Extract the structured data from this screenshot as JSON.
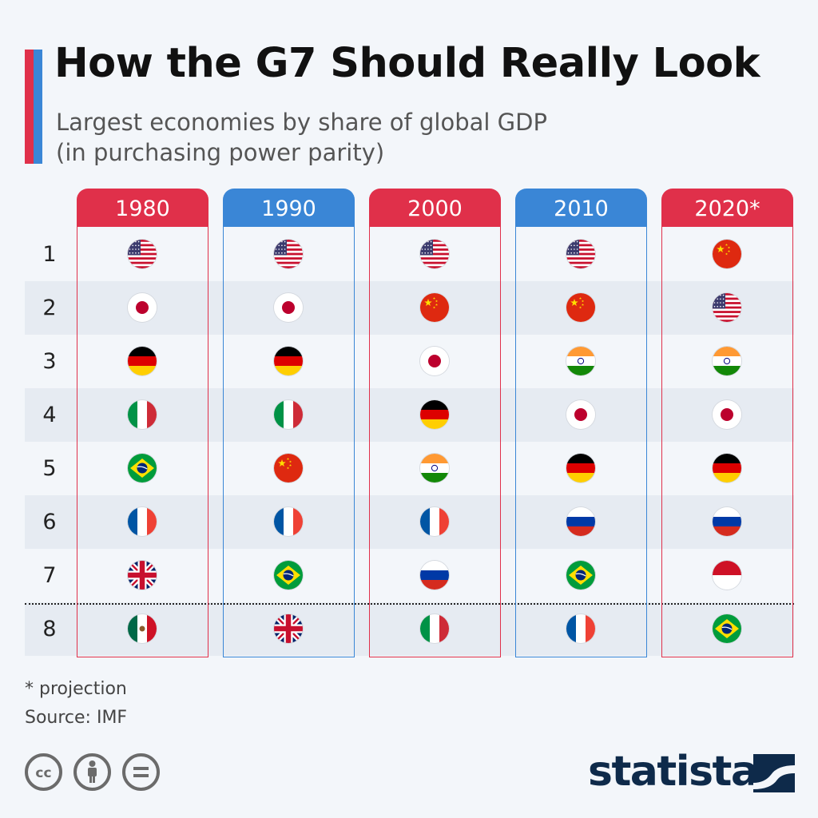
{
  "header": {
    "title": "How the G7 Should Really Look",
    "subtitle": "Largest economies by share of global GDP (in purchasing power parity)"
  },
  "colors": {
    "red": "#e0304a",
    "blue": "#3a86d6",
    "row_band": "#e6ebf2",
    "background": "#f3f6fa"
  },
  "chart_data": {
    "type": "table",
    "title": "How the G7 Should Really Look",
    "subtitle": "Largest economies by share of global GDP (in purchasing power parity)",
    "ranks": [
      "1",
      "2",
      "3",
      "4",
      "5",
      "6",
      "7",
      "8"
    ],
    "cutoff_after_rank": 7,
    "columns": [
      {
        "year": "1980",
        "color": "red",
        "countries": [
          "United States",
          "Japan",
          "Germany",
          "Italy",
          "Brazil",
          "France",
          "United Kingdom",
          "Mexico"
        ]
      },
      {
        "year": "1990",
        "color": "blue",
        "countries": [
          "United States",
          "Japan",
          "Germany",
          "Italy",
          "China",
          "France",
          "Brazil",
          "United Kingdom"
        ]
      },
      {
        "year": "2000",
        "color": "red",
        "countries": [
          "United States",
          "China",
          "Japan",
          "Germany",
          "India",
          "France",
          "Russia",
          "Italy"
        ]
      },
      {
        "year": "2010",
        "color": "blue",
        "countries": [
          "United States",
          "China",
          "India",
          "Japan",
          "Germany",
          "Russia",
          "Brazil",
          "France"
        ]
      },
      {
        "year": "2020*",
        "color": "red",
        "countries": [
          "China",
          "United States",
          "India",
          "Japan",
          "Germany",
          "Russia",
          "Indonesia",
          "Brazil"
        ]
      }
    ]
  },
  "footer": {
    "note": "* projection",
    "source": "Source: IMF",
    "license_icons": [
      "cc-icon",
      "by-attribution-icon",
      "no-derivatives-icon"
    ],
    "brand": "statista"
  }
}
